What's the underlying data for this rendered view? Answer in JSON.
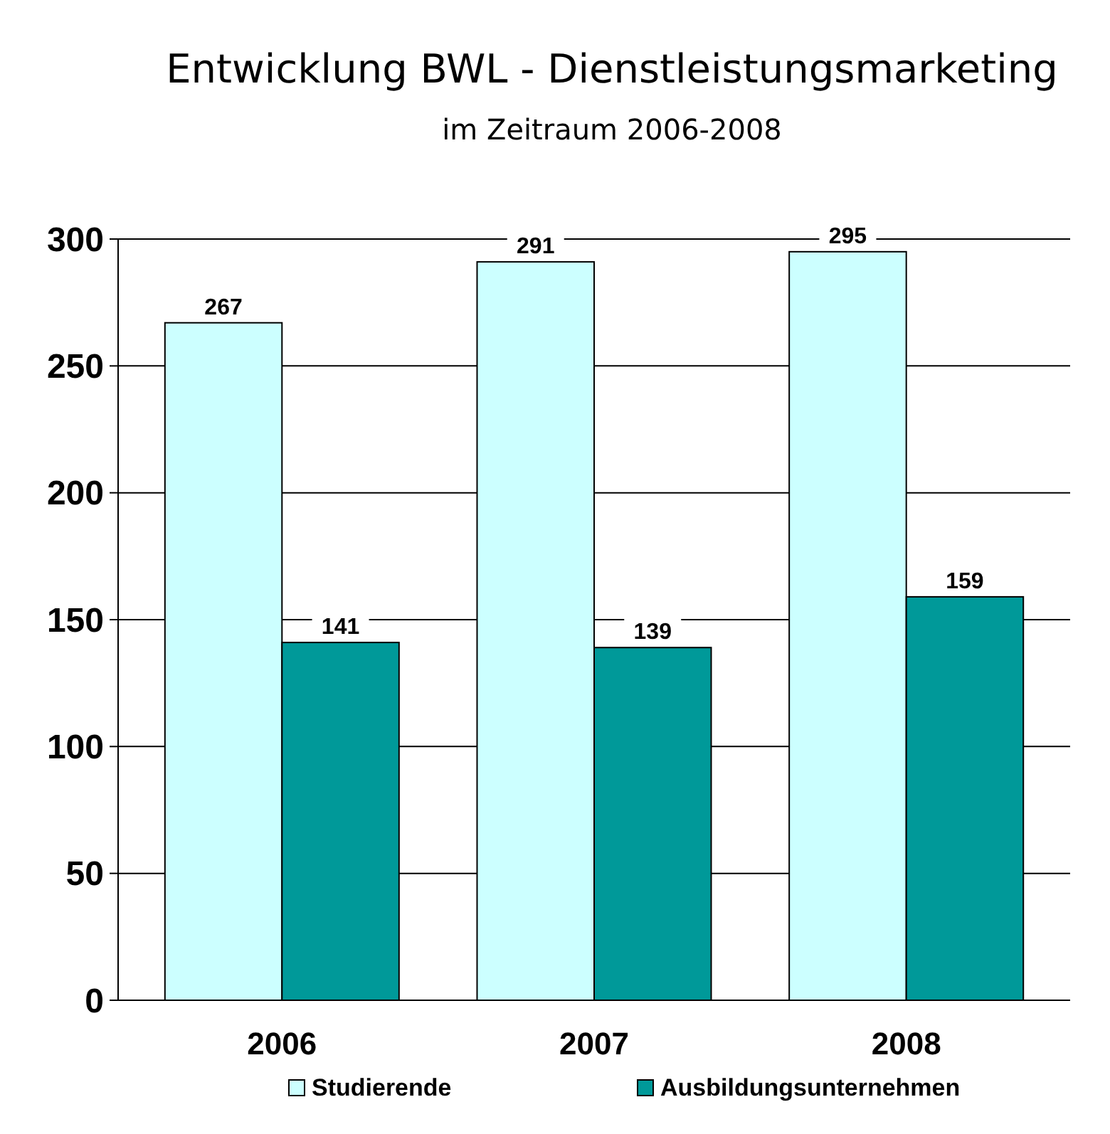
{
  "chart_data": {
    "type": "bar",
    "title": "Entwicklung BWL - Dienstleistungsmarketing",
    "subtitle": "im Zeitraum 2006-2008",
    "categories": [
      "2006",
      "2007",
      "2008"
    ],
    "series": [
      {
        "name": "Studierende",
        "color": "#ccffff",
        "values": [
          267,
          291,
          295
        ]
      },
      {
        "name": "Ausbildungsunternehmen",
        "color": "#009999",
        "values": [
          141,
          139,
          159
        ]
      }
    ],
    "ylim": [
      0,
      300
    ],
    "yticks": [
      0,
      50,
      100,
      150,
      200,
      250,
      300
    ],
    "grid": "y",
    "legend": "bottom",
    "data_labels": true
  }
}
